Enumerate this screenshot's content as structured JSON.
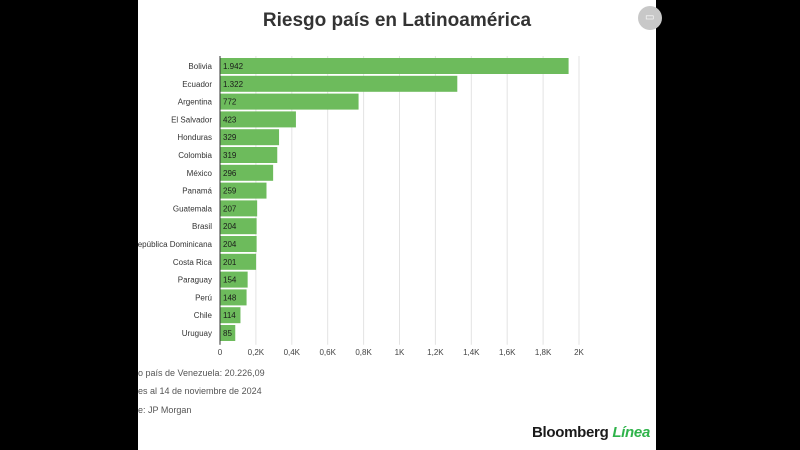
{
  "chart_data": {
    "type": "bar",
    "orientation": "horizontal",
    "title": "Riesgo país en Latinoamérica",
    "categories": [
      "Bolivia",
      "Ecuador",
      "Argentina",
      "El Salvador",
      "Honduras",
      "Colombia",
      "México",
      "Panamá",
      "Guatemala",
      "Brasil",
      "República Dominicana",
      "Costa Rica",
      "Paraguay",
      "Perú",
      "Chile",
      "Uruguay"
    ],
    "values": [
      1942,
      1322,
      772,
      423,
      329,
      319,
      296,
      259,
      207,
      204,
      204,
      201,
      154,
      148,
      114,
      85
    ],
    "value_labels": [
      "1.942",
      "1.322",
      "772",
      "423",
      "329",
      "319",
      "296",
      "259",
      "207",
      "204",
      "204",
      "201",
      "154",
      "148",
      "114",
      "85"
    ],
    "x_ticks": [
      0,
      200,
      400,
      600,
      800,
      1000,
      1200,
      1400,
      1600,
      1800,
      2000
    ],
    "x_tick_labels": [
      "0",
      "0,2K",
      "0,4K",
      "0,6K",
      "0,8K",
      "1K",
      "1,2K",
      "1,4K",
      "1,6K",
      "1,8K",
      "2K"
    ],
    "xlim": [
      0,
      2000
    ],
    "grid": true,
    "bar_color": "#6dbb5c"
  },
  "notes": {
    "venezuela": "o país de Venezuela: 20.226,09",
    "date": "es al 14 de noviembre de 2024",
    "source": "e: JP Morgan"
  },
  "brand": {
    "main": "Bloomberg",
    "accent": "Línea"
  }
}
